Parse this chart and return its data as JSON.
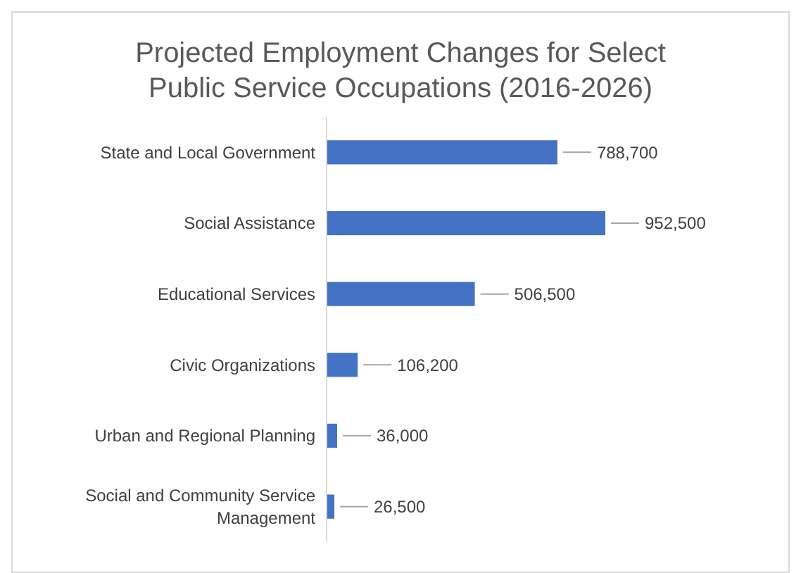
{
  "chart_data": {
    "type": "bar",
    "orientation": "horizontal",
    "title": "Projected Employment Changes for Select Public Service Occupations (2016-2026)",
    "categories": [
      "State and Local Government",
      "Social Assistance",
      "Educational Services",
      "Civic Organizations",
      "Urban and Regional Planning",
      "Social and Community Service Management"
    ],
    "values": [
      788700,
      952500,
      506500,
      106200,
      36000,
      26500
    ],
    "value_labels": [
      "788,700",
      "952,500",
      "506,500",
      "106,200",
      "36,000",
      "26,500"
    ],
    "color": "#4472c4"
  }
}
